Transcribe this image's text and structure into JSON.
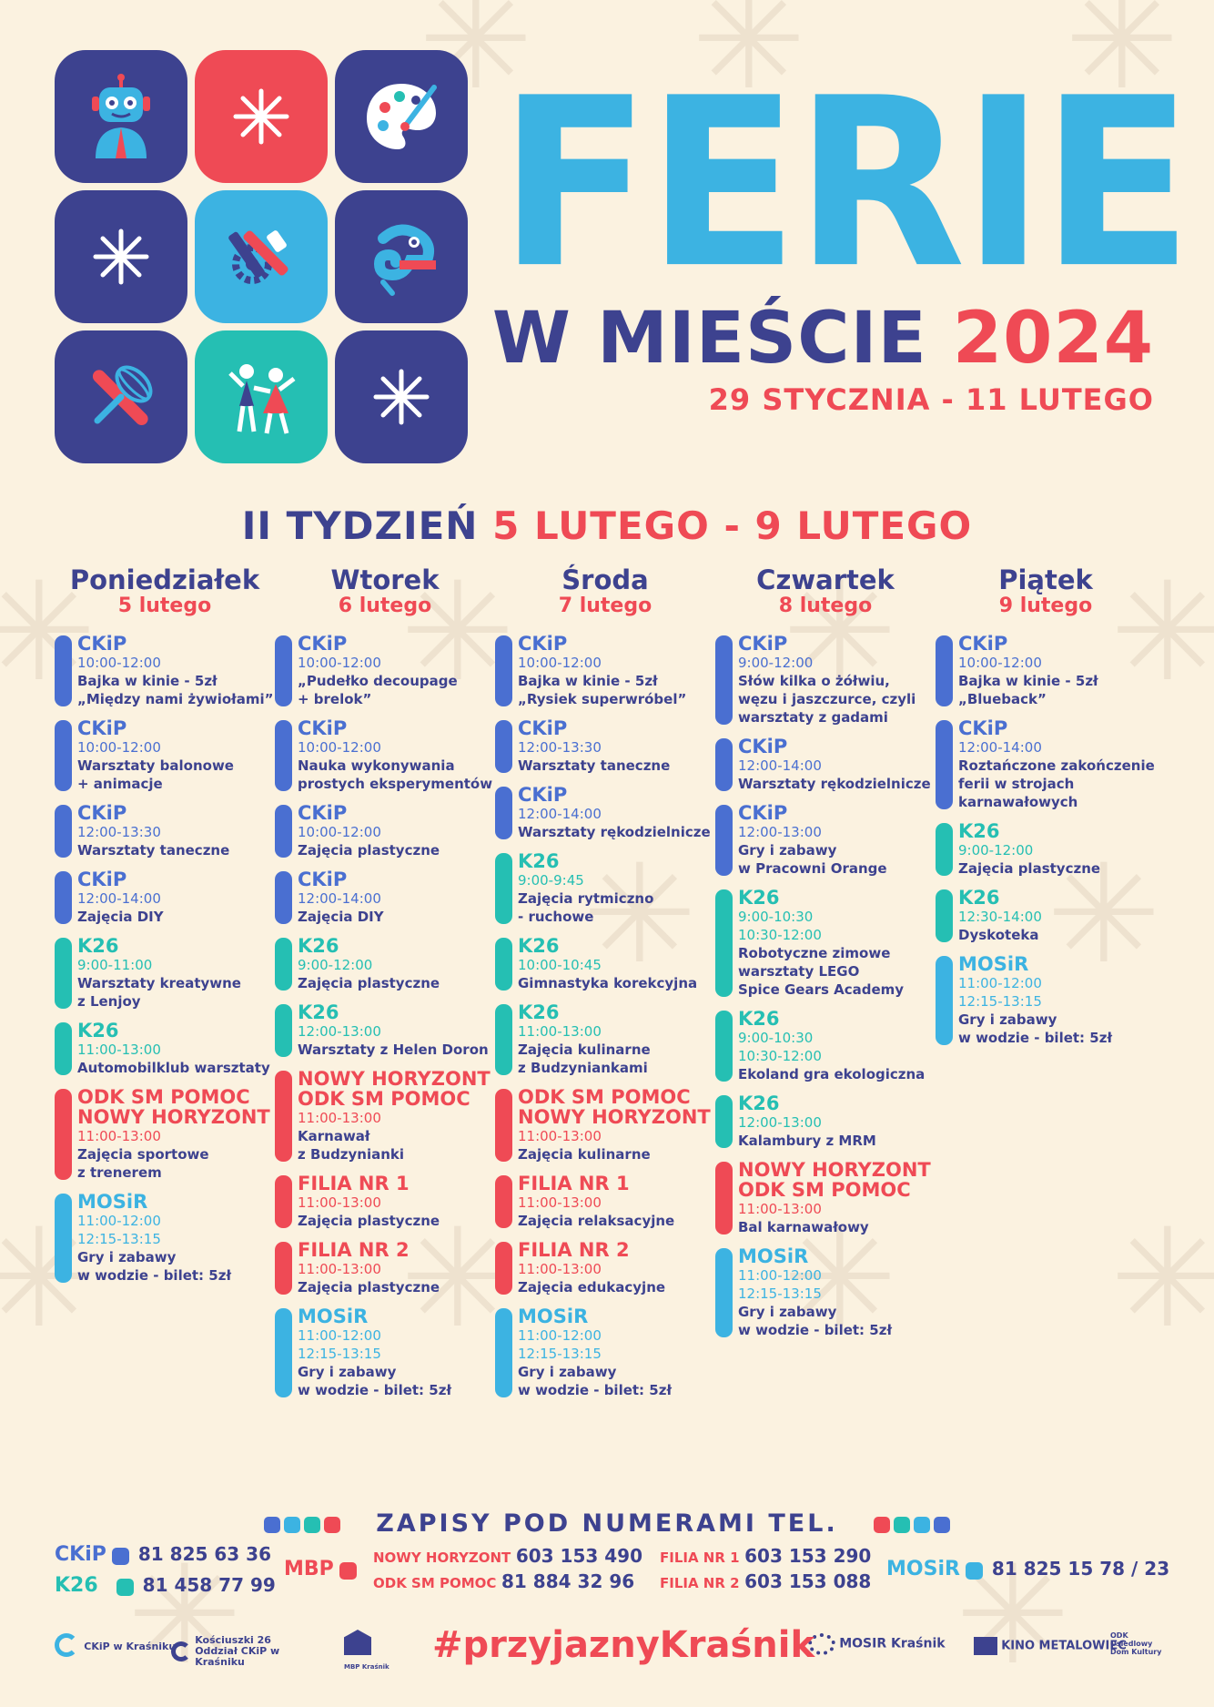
{
  "title": "FERIE",
  "subtitle_part1": "W MIEŚCIE",
  "subtitle_part2": "2024",
  "date_range": "29 STYCZNIA - 11 LUTEGO",
  "week": {
    "label": "II TYDZIEŃ",
    "range": "5 LUTEGO - 9 LUTEGO"
  },
  "colors": {
    "navy": "#3d428f",
    "red": "#ef4a55",
    "blue": "#3cb3e2",
    "teal": "#25bfb3",
    "ckip": "#4a6fd1",
    "background": "#fbf2e0"
  },
  "tiles": [
    "robot-icon",
    "snowflake-icon",
    "palette-icon",
    "snowflake-icon",
    "tools-icon",
    "chameleon-icon",
    "rolling-pin-whisk-icon",
    "dancers-icon",
    "snowflake-icon"
  ],
  "days": [
    {
      "name": "Poniedziałek",
      "date": "5 lutego",
      "events": [
        {
          "type": "ckip",
          "loc": "CKiP",
          "times": [
            "10:00-12:00"
          ],
          "desc": [
            "Bajka w kinie - 5zł",
            "„Między nami żywiołami”"
          ]
        },
        {
          "type": "ckip",
          "loc": "CKiP",
          "times": [
            "10:00-12:00"
          ],
          "desc": [
            "Warsztaty balonowe",
            "+ animacje"
          ]
        },
        {
          "type": "ckip",
          "loc": "CKiP",
          "times": [
            "12:00-13:30"
          ],
          "desc": [
            "Warsztaty taneczne"
          ]
        },
        {
          "type": "ckip",
          "loc": "CKiP",
          "times": [
            "12:00-14:00"
          ],
          "desc": [
            "Zajęcia DIY"
          ]
        },
        {
          "type": "k26",
          "loc": "K26",
          "times": [
            "9:00-11:00"
          ],
          "desc": [
            "Warsztaty kreatywne",
            "z Lenjoy"
          ]
        },
        {
          "type": "k26",
          "loc": "K26",
          "times": [
            "11:00-13:00"
          ],
          "desc": [
            "Automobilklub warsztaty"
          ]
        },
        {
          "type": "red",
          "loc": "ODK SM POMOC",
          "loc2": "NOWY HORYZONT",
          "times": [
            "11:00-13:00"
          ],
          "desc": [
            "Zajęcia sportowe",
            "z trenerem"
          ]
        },
        {
          "type": "mosir",
          "loc": "MOSiR",
          "times": [
            "11:00-12:00",
            "12:15-13:15"
          ],
          "desc": [
            "Gry i zabawy",
            "w wodzie - bilet: 5zł"
          ]
        }
      ]
    },
    {
      "name": "Wtorek",
      "date": "6 lutego",
      "events": [
        {
          "type": "ckip",
          "loc": "CKiP",
          "times": [
            "10:00-12:00"
          ],
          "desc": [
            "„Pudełko decoupage",
            "+ brelok”"
          ]
        },
        {
          "type": "ckip",
          "loc": "CKiP",
          "times": [
            "10:00-12:00"
          ],
          "desc": [
            "Nauka wykonywania",
            "prostych eksperymentów"
          ]
        },
        {
          "type": "ckip",
          "loc": "CKiP",
          "times": [
            "10:00-12:00"
          ],
          "desc": [
            "Zajęcia plastyczne"
          ]
        },
        {
          "type": "ckip",
          "loc": "CKiP",
          "times": [
            "12:00-14:00"
          ],
          "desc": [
            "Zajęcia DIY"
          ]
        },
        {
          "type": "k26",
          "loc": "K26",
          "times": [
            "9:00-12:00"
          ],
          "desc": [
            "Zajęcia plastyczne"
          ]
        },
        {
          "type": "k26",
          "loc": "K26",
          "times": [
            "12:00-13:00"
          ],
          "desc": [
            "Warsztaty z Helen Doron"
          ]
        },
        {
          "type": "red",
          "loc": "NOWY HORYZONT",
          "loc2": "ODK SM POMOC",
          "times": [
            "11:00-13:00"
          ],
          "desc": [
            "Karnawał",
            "z Budzynianki"
          ]
        },
        {
          "type": "red",
          "loc": "FILIA NR 1",
          "times": [
            "11:00-13:00"
          ],
          "desc": [
            "Zajęcia plastyczne"
          ]
        },
        {
          "type": "red",
          "loc": "FILIA NR 2",
          "times": [
            "11:00-13:00"
          ],
          "desc": [
            "Zajęcia plastyczne"
          ]
        },
        {
          "type": "mosir",
          "loc": "MOSiR",
          "times": [
            "11:00-12:00",
            "12:15-13:15"
          ],
          "desc": [
            "Gry i zabawy",
            "w wodzie - bilet: 5zł"
          ]
        }
      ]
    },
    {
      "name": "Środa",
      "date": "7 lutego",
      "events": [
        {
          "type": "ckip",
          "loc": "CKiP",
          "times": [
            "10:00-12:00"
          ],
          "desc": [
            "Bajka w kinie - 5zł",
            "„Rysiek superwróbel”"
          ]
        },
        {
          "type": "ckip",
          "loc": "CKiP",
          "times": [
            "12:00-13:30"
          ],
          "desc": [
            "Warsztaty taneczne"
          ]
        },
        {
          "type": "ckip",
          "loc": "CKiP",
          "times": [
            "12:00-14:00"
          ],
          "desc": [
            "Warsztaty rękodzielnicze"
          ]
        },
        {
          "type": "k26",
          "loc": "K26",
          "times": [
            "9:00-9:45"
          ],
          "desc": [
            "Zajęcia rytmiczno",
            "- ruchowe"
          ]
        },
        {
          "type": "k26",
          "loc": "K26",
          "times": [
            "10:00-10:45"
          ],
          "desc": [
            "Gimnastyka korekcyjna"
          ]
        },
        {
          "type": "k26",
          "loc": "K26",
          "times": [
            "11:00-13:00"
          ],
          "desc": [
            "Zajęcia kulinarne",
            "z Budzyniankami"
          ]
        },
        {
          "type": "red",
          "loc": "ODK SM POMOC",
          "loc2": "NOWY HORYZONT",
          "times": [
            "11:00-13:00"
          ],
          "desc": [
            "Zajęcia kulinarne"
          ]
        },
        {
          "type": "red",
          "loc": "FILIA NR 1",
          "times": [
            "11:00-13:00"
          ],
          "desc": [
            "Zajęcia relaksacyjne"
          ]
        },
        {
          "type": "red",
          "loc": "FILIA NR 2",
          "times": [
            "11:00-13:00"
          ],
          "desc": [
            "Zajęcia edukacyjne"
          ]
        },
        {
          "type": "mosir",
          "loc": "MOSiR",
          "times": [
            "11:00-12:00",
            "12:15-13:15"
          ],
          "desc": [
            "Gry i zabawy",
            "w wodzie - bilet: 5zł"
          ]
        }
      ]
    },
    {
      "name": "Czwartek",
      "date": "8 lutego",
      "events": [
        {
          "type": "ckip",
          "loc": "CKiP",
          "times": [
            "9:00-12:00"
          ],
          "desc": [
            "Słów kilka o żółwiu,",
            "węzu i jaszczurce, czyli",
            "warsztaty z gadami"
          ]
        },
        {
          "type": "ckip",
          "loc": "CKiP",
          "times": [
            "12:00-14:00"
          ],
          "desc": [
            "Warsztaty rękodzielnicze"
          ]
        },
        {
          "type": "ckip",
          "loc": "CKiP",
          "times": [
            "12:00-13:00"
          ],
          "desc": [
            "Gry i zabawy",
            "w Pracowni Orange"
          ]
        },
        {
          "type": "k26",
          "loc": "K26",
          "times": [
            "9:00-10:30",
            "10:30-12:00"
          ],
          "desc": [
            "Robotyczne zimowe",
            "warsztaty LEGO",
            "Spice Gears Academy"
          ]
        },
        {
          "type": "k26",
          "loc": "K26",
          "times": [
            "9:00-10:30",
            "10:30-12:00"
          ],
          "desc": [
            "Ekoland gra ekologiczna"
          ]
        },
        {
          "type": "k26",
          "loc": "K26",
          "times": [
            "12:00-13:00"
          ],
          "desc": [
            "Kalambury z MRM"
          ]
        },
        {
          "type": "red",
          "loc": "NOWY HORYZONT",
          "loc2": "ODK SM POMOC",
          "times": [
            "11:00-13:00"
          ],
          "desc": [
            "Bal karnawałowy"
          ]
        },
        {
          "type": "mosir",
          "loc": "MOSiR",
          "times": [
            "11:00-12:00",
            "12:15-13:15"
          ],
          "desc": [
            "Gry i zabawy",
            "w wodzie - bilet: 5zł"
          ]
        }
      ]
    },
    {
      "name": "Piątek",
      "date": "9 lutego",
      "events": [
        {
          "type": "ckip",
          "loc": "CKiP",
          "times": [
            "10:00-12:00"
          ],
          "desc": [
            "Bajka w kinie - 5zł",
            "„Blueback”"
          ]
        },
        {
          "type": "ckip",
          "loc": "CKiP",
          "times": [
            "12:00-14:00"
          ],
          "desc": [
            "Roztańczone zakończenie",
            "ferii w strojach",
            "karnawałowych"
          ]
        },
        {
          "type": "k26",
          "loc": "K26",
          "times": [
            "9:00-12:00"
          ],
          "desc": [
            "Zajęcia plastyczne"
          ]
        },
        {
          "type": "k26",
          "loc": "K26",
          "times": [
            "12:30-14:00"
          ],
          "desc": [
            "Dyskoteka"
          ]
        },
        {
          "type": "mosir",
          "loc": "MOSiR",
          "times": [
            "11:00-12:00",
            "12:15-13:15"
          ],
          "desc": [
            "Gry i zabawy",
            "w wodzie - bilet: 5zł"
          ]
        }
      ]
    }
  ],
  "signup": "ZAPISY POD NUMERAMI TEL.",
  "contacts": {
    "ckip": {
      "org": "CKiP",
      "num": "81 825 63 36"
    },
    "k26": {
      "org": "K26",
      "num": "81 458 77 99"
    },
    "mbp": {
      "org": "MBP"
    },
    "nowy_horyzont": {
      "org": "NOWY HORYZONT",
      "num": "603 153 490"
    },
    "odk": {
      "org": "ODK SM POMOC",
      "num": "81 884 32 96"
    },
    "filia1": {
      "org": "FILIA NR 1",
      "num": "603 153 290"
    },
    "filia2": {
      "org": "FILIA NR 2",
      "num": "603 153 088"
    },
    "mosir": {
      "org": "MOSiR",
      "num": "81 825 15 78 / 23"
    }
  },
  "footer": {
    "hashtag": "#przyjaznyKraśnik",
    "logos": [
      "CKiP w Kraśniku",
      "Kościuszki 26 Oddział CKiP w Kraśniku",
      "MBP Kraśnik",
      "MOSIR Kraśnik",
      "KINO METALOWIEC",
      "ODK Osiedlowy Dom Kultury"
    ]
  }
}
